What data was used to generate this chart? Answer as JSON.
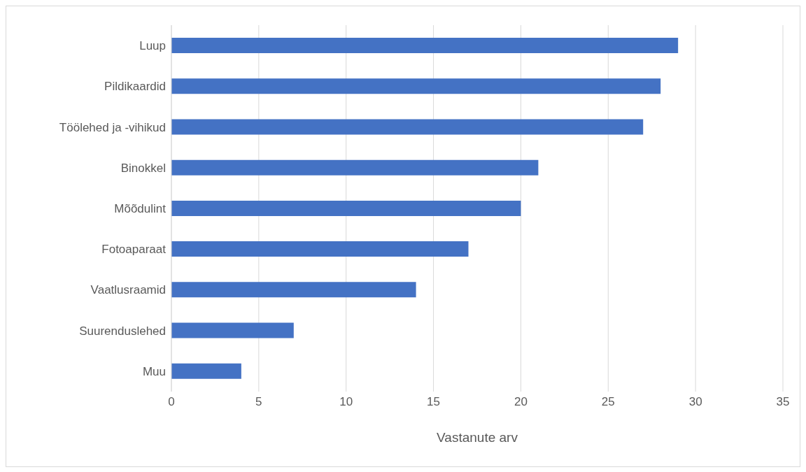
{
  "chart_data": {
    "type": "bar",
    "orientation": "horizontal",
    "xlabel": "Vastanute arv",
    "categories": [
      "Luup",
      "Pildikaardid",
      "Töölehed ja -vihikud",
      "Binokkel",
      "Mõõdulint",
      "Fotoaparaat",
      "Vaatlusraamid",
      "Suurenduslehed",
      "Muu"
    ],
    "values": [
      29,
      28,
      27,
      21,
      20,
      17,
      14,
      7,
      4
    ],
    "color": "#4472c4",
    "xlim": [
      0,
      35
    ],
    "xticks": [
      0,
      5,
      10,
      15,
      20,
      25,
      30,
      35
    ],
    "grid": "x"
  }
}
